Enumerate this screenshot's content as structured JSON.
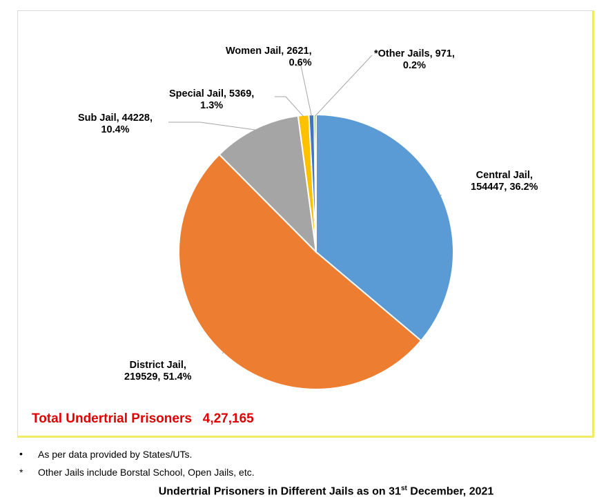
{
  "chart_data": {
    "type": "pie",
    "title": "",
    "slices": [
      {
        "name": "Central Jail",
        "value": 154447,
        "percent": "36.2%",
        "color": "#5b9bd5",
        "label_line1": "Central Jail,",
        "label_line2": "154447, 36.2%"
      },
      {
        "name": "District Jail",
        "value": 219529,
        "percent": "51.4%",
        "color": "#ed7d31",
        "label_line1": "District Jail,",
        "label_line2": "219529, 51.4%"
      },
      {
        "name": "Sub Jail",
        "value": 44228,
        "percent": "10.4%",
        "color": "#a5a5a5",
        "label_line1": "Sub Jail, 44228,",
        "label_line2": "10.4%"
      },
      {
        "name": "Special Jail",
        "value": 5369,
        "percent": "1.3%",
        "color": "#ffc000",
        "label_line1": "Special Jail, 5369,",
        "label_line2": "1.3%"
      },
      {
        "name": "Women Jail",
        "value": 2621,
        "percent": "0.6%",
        "color": "#4472c4",
        "label_line1": "Women Jail, 2621,",
        "label_line2": "0.6%"
      },
      {
        "name": "*Other Jails",
        "value": 971,
        "percent": "0.2%",
        "color": "#70ad47",
        "label_line1": "*Other Jails, 971,",
        "label_line2": "0.2%"
      }
    ]
  },
  "total": {
    "text": "Total Undertrial Prisoners   4,27,165"
  },
  "notes": [
    {
      "bullet": "•",
      "text": "As per data provided by States/UTs."
    },
    {
      "bullet": "*",
      "text": "Other Jails include Borstal School, Open Jails, etc."
    }
  ],
  "caption": {
    "before": "Undertrial Prisoners in Different Jails as on 31",
    "sup": "st",
    "after": " December, 2021"
  }
}
